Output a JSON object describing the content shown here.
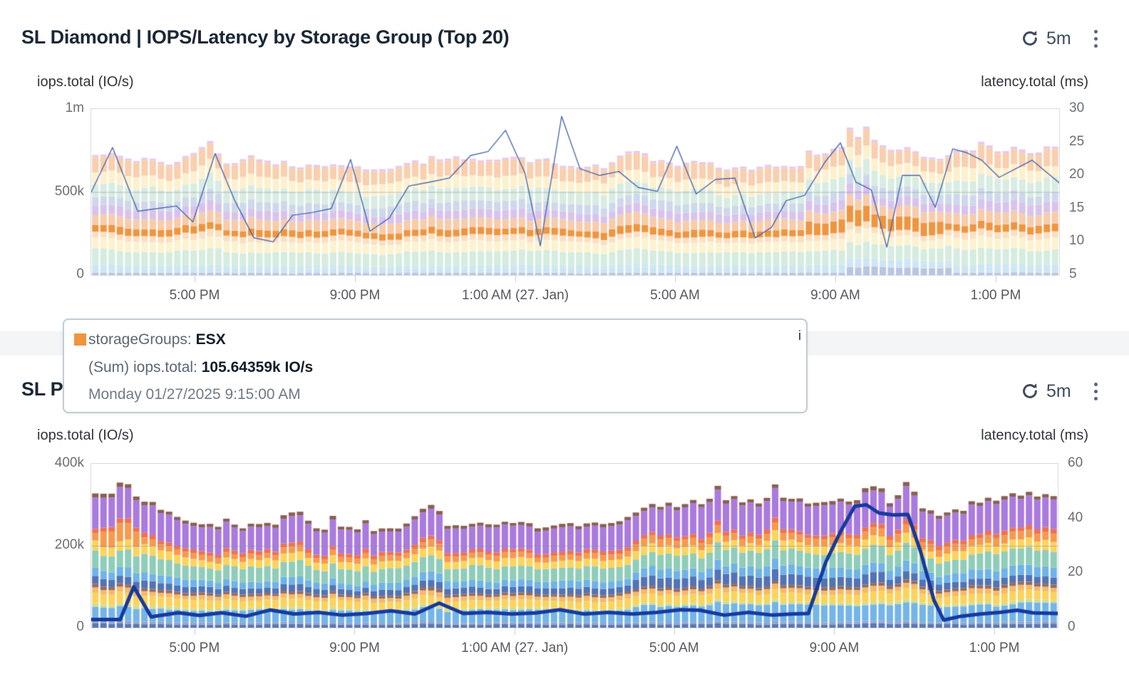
{
  "panels": [
    {
      "title": "SL Diamond | IOPS/Latency by Storage Group (Top 20)",
      "refresh_interval": "5m"
    },
    {
      "title": "SL P",
      "refresh_interval": "5m"
    }
  ],
  "tooltip": {
    "swatch_color": "#f0943e",
    "series_label": "storageGroups:",
    "series_value": "ESX",
    "metric_label": "(Sum) iops.total:",
    "metric_value": "105.64359k IO/s",
    "timestamp": "Monday 01/27/2025 9:15:00 AM",
    "overlay_char": "i"
  },
  "chart_data": [
    {
      "type": "stacked-bar+line",
      "title": "SL Diamond | IOPS/Latency by Storage Group (Top 20)",
      "bars": 118,
      "seed": 42,
      "grid_fracs": [
        0.5
      ],
      "legend": "none",
      "y_left": {
        "label": "iops.total (IO/s)",
        "max_k": 1000,
        "ticks": [
          {
            "t": "1m",
            "f": 0
          },
          {
            "t": "500k",
            "f": 0.5
          },
          {
            "t": "0",
            "f": 1
          }
        ]
      },
      "y_right": {
        "label": "latency.total (ms)",
        "min": 5,
        "max": 30,
        "ticks": [
          {
            "t": "30",
            "f": 0
          },
          {
            "t": "25",
            "f": 0.2
          },
          {
            "t": "20",
            "f": 0.4
          },
          {
            "t": "15",
            "f": 0.6
          },
          {
            "t": "10",
            "f": 0.8
          },
          {
            "t": "5",
            "f": 1
          }
        ]
      },
      "x_axis": {
        "ticks": [
          {
            "t": "5:00 PM",
            "f": 0.1075
          },
          {
            "t": "9:00 PM",
            "f": 0.2732
          },
          {
            "t": "1:00 AM (27. Jan)",
            "f": 0.4389
          },
          {
            "t": "5:00 AM",
            "f": 0.6038
          },
          {
            "t": "9:00 AM",
            "f": 0.7695
          },
          {
            "t": "1:00 PM",
            "f": 0.9352
          }
        ]
      },
      "totals_k": [
        [
          0,
          700
        ],
        [
          0.02,
          730
        ],
        [
          0.05,
          700
        ],
        [
          0.08,
          680
        ],
        [
          0.1,
          700
        ],
        [
          0.115,
          755
        ],
        [
          0.14,
          690
        ],
        [
          0.18,
          675
        ],
        [
          0.22,
          665
        ],
        [
          0.26,
          655
        ],
        [
          0.3,
          650
        ],
        [
          0.33,
          670
        ],
        [
          0.36,
          710
        ],
        [
          0.4,
          705
        ],
        [
          0.43,
          715
        ],
        [
          0.46,
          690
        ],
        [
          0.5,
          665
        ],
        [
          0.53,
          655
        ],
        [
          0.555,
          760
        ],
        [
          0.58,
          690
        ],
        [
          0.62,
          670
        ],
        [
          0.65,
          655
        ],
        [
          0.68,
          645
        ],
        [
          0.71,
          655
        ],
        [
          0.74,
          680
        ],
        [
          0.765,
          775
        ],
        [
          0.79,
          810
        ],
        [
          0.8,
          875
        ],
        [
          0.815,
          800
        ],
        [
          0.835,
          760
        ],
        [
          0.86,
          730
        ],
        [
          0.88,
          720
        ],
        [
          0.9,
          735
        ],
        [
          0.92,
          790
        ],
        [
          0.94,
          745
        ],
        [
          0.96,
          755
        ],
        [
          0.98,
          760
        ],
        [
          1,
          755
        ]
      ],
      "layers": [
        {
          "color": "#b9c6e0",
          "frac": 0.02,
          "boost": [
            [
              0.78,
              0.89,
              3.2
            ]
          ]
        },
        {
          "color": "#cfe4f4",
          "frac": 0.045
        },
        {
          "color": "#cbe6f5",
          "frac": 0.02
        },
        {
          "color": "#d5ecdf",
          "frac": 0.125
        },
        {
          "color": "#fdf2cf",
          "frac": 0.09
        },
        {
          "color": "#fbdfc1",
          "frac": 0.05
        },
        {
          "name": "ESX",
          "color": "#f0953f",
          "frac": 0.06,
          "boost": [
            [
              0.74,
              0.88,
              1.9
            ]
          ]
        },
        {
          "color": "#f8cba9",
          "frac": 0.09
        },
        {
          "color": "#d9c3ec",
          "frac": 0.075
        },
        {
          "color": "#ced8ec",
          "frac": 0.08
        },
        {
          "color": "#d8ece2",
          "frac": 0.115
        },
        {
          "color": "#fdf0cd",
          "frac": 0.1
        },
        {
          "color": "#f9cfae",
          "frac": 0.13
        },
        {
          "color": "#e5c8ef",
          "frac": 0.018
        }
      ],
      "line": {
        "color": "#4a68b0",
        "width": 1.4,
        "points": [
          [
            0,
            17.5
          ],
          [
            0.022,
            24.2
          ],
          [
            0.048,
            14.6
          ],
          [
            0.068,
            15.0
          ],
          [
            0.088,
            15.4
          ],
          [
            0.105,
            13.0
          ],
          [
            0.128,
            23.3
          ],
          [
            0.148,
            16.3
          ],
          [
            0.168,
            10.6
          ],
          [
            0.188,
            10.0
          ],
          [
            0.208,
            14.0
          ],
          [
            0.228,
            14.4
          ],
          [
            0.248,
            15.0
          ],
          [
            0.268,
            22.4
          ],
          [
            0.288,
            11.6
          ],
          [
            0.308,
            13.6
          ],
          [
            0.328,
            18.4
          ],
          [
            0.35,
            19.0
          ],
          [
            0.37,
            19.6
          ],
          [
            0.392,
            23.0
          ],
          [
            0.41,
            23.6
          ],
          [
            0.428,
            26.8
          ],
          [
            0.448,
            20.4
          ],
          [
            0.464,
            9.4
          ],
          [
            0.486,
            28.9
          ],
          [
            0.505,
            21.0
          ],
          [
            0.525,
            20.0
          ],
          [
            0.545,
            20.6
          ],
          [
            0.565,
            18.2
          ],
          [
            0.585,
            17.6
          ],
          [
            0.605,
            24.4
          ],
          [
            0.625,
            17.2
          ],
          [
            0.645,
            19.4
          ],
          [
            0.665,
            19.6
          ],
          [
            0.686,
            10.6
          ],
          [
            0.703,
            12.2
          ],
          [
            0.718,
            16.2
          ],
          [
            0.737,
            17.0
          ],
          [
            0.758,
            22.0
          ],
          [
            0.774,
            24.9
          ],
          [
            0.79,
            19.0
          ],
          [
            0.806,
            17.8
          ],
          [
            0.822,
            9.2
          ],
          [
            0.838,
            20.0
          ],
          [
            0.856,
            20.0
          ],
          [
            0.872,
            15.2
          ],
          [
            0.89,
            24.0
          ],
          [
            0.905,
            23.4
          ],
          [
            0.92,
            22.3
          ],
          [
            0.938,
            19.7
          ],
          [
            0.955,
            21.0
          ],
          [
            0.972,
            22.3
          ],
          [
            1,
            18.9
          ]
        ]
      }
    },
    {
      "type": "stacked-bar+line",
      "title": "SL P",
      "bars": 118,
      "seed": 99,
      "grid_fracs": [
        0.5
      ],
      "legend": "none",
      "y_left": {
        "label": "iops.total (IO/s)",
        "max_k": 400,
        "ticks": [
          {
            "t": "400k",
            "f": 0
          },
          {
            "t": "200k",
            "f": 0.5
          },
          {
            "t": "0",
            "f": 1
          }
        ]
      },
      "y_right": {
        "label": "latency.total (ms)",
        "min": 0,
        "max": 60,
        "ticks": [
          {
            "t": "60",
            "f": 0
          },
          {
            "t": "40",
            "f": 0.3333
          },
          {
            "t": "20",
            "f": 0.6667
          },
          {
            "t": "0",
            "f": 1
          }
        ]
      },
      "x_axis": {
        "ticks": [
          {
            "t": "5:00 PM",
            "f": 0.1075
          },
          {
            "t": "9:00 PM",
            "f": 0.2732
          },
          {
            "t": "1:00 AM (27. Jan)",
            "f": 0.4389
          },
          {
            "t": "5:00 AM",
            "f": 0.6038
          },
          {
            "t": "9:00 AM",
            "f": 0.7695
          },
          {
            "t": "1:00 PM",
            "f": 0.9352
          }
        ]
      },
      "totals_k": [
        [
          0,
          330
        ],
        [
          0.02,
          335
        ],
        [
          0.035,
          358
        ],
        [
          0.05,
          320
        ],
        [
          0.07,
          295
        ],
        [
          0.1,
          258
        ],
        [
          0.13,
          252
        ],
        [
          0.16,
          248
        ],
        [
          0.19,
          252
        ],
        [
          0.21,
          288
        ],
        [
          0.23,
          248
        ],
        [
          0.26,
          242
        ],
        [
          0.29,
          238
        ],
        [
          0.32,
          240
        ],
        [
          0.35,
          308
        ],
        [
          0.37,
          248
        ],
        [
          0.4,
          252
        ],
        [
          0.43,
          256
        ],
        [
          0.46,
          250
        ],
        [
          0.49,
          248
        ],
        [
          0.52,
          252
        ],
        [
          0.55,
          258
        ],
        [
          0.58,
          295
        ],
        [
          0.61,
          305
        ],
        [
          0.64,
          312
        ],
        [
          0.67,
          315
        ],
        [
          0.7,
          308
        ],
        [
          0.72,
          322
        ],
        [
          0.75,
          308
        ],
        [
          0.77,
          305
        ],
        [
          0.8,
          312
        ],
        [
          0.81,
          352
        ],
        [
          0.83,
          300
        ],
        [
          0.845,
          358
        ],
        [
          0.86,
          300
        ],
        [
          0.875,
          278
        ],
        [
          0.9,
          292
        ],
        [
          0.92,
          308
        ],
        [
          0.94,
          315
        ],
        [
          0.96,
          322
        ],
        [
          0.98,
          330
        ],
        [
          1,
          328
        ]
      ],
      "layers": [
        {
          "color": "#5e77b5",
          "frac": 0.03
        },
        {
          "color": "#93a5cc",
          "frac": 0.018
        },
        {
          "color": "#74b5e9",
          "frac": 0.11,
          "boost": [
            [
              0.56,
              1.01,
              1.25
            ]
          ]
        },
        {
          "color": "#d2de8e",
          "frac": 0.022
        },
        {
          "color": "#fbd35c",
          "frac": 0.07
        },
        {
          "color": "#f6b966",
          "frac": 0.038
        },
        {
          "color": "#9b6b5a",
          "frac": 0.024
        },
        {
          "color": "#5273b5",
          "frac": 0.055,
          "boost": [
            [
              0.56,
              0.82,
              1.5
            ]
          ]
        },
        {
          "color": "#6fb3e8",
          "frac": 0.062,
          "boost": [
            [
              0.56,
              1.01,
              1.2
            ]
          ]
        },
        {
          "color": "#90cdb9",
          "frac": 0.128
        },
        {
          "color": "#fcd45c",
          "frac": 0.068
        },
        {
          "color": "#f79a4d",
          "frac": 0.05,
          "boost": [
            [
              0.01,
              0.055,
              2.2
            ],
            [
              0.56,
              1.01,
              1.2
            ]
          ]
        },
        {
          "color": "#f2714d",
          "frac": 0.034
        },
        {
          "color": "#aa7ade",
          "frac": 0.215,
          "boost": [
            [
              0.58,
              1.01,
              1.1
            ]
          ]
        },
        {
          "color": "#8a5f52",
          "frac": 0.028
        }
      ],
      "line": {
        "color": "#17399e",
        "width": 5,
        "points": [
          [
            0,
            3.0
          ],
          [
            0.03,
            3.0
          ],
          [
            0.044,
            15.0
          ],
          [
            0.062,
            4.0
          ],
          [
            0.09,
            5.5
          ],
          [
            0.112,
            4.5
          ],
          [
            0.135,
            5.5
          ],
          [
            0.16,
            4.2
          ],
          [
            0.185,
            6.5
          ],
          [
            0.21,
            5.0
          ],
          [
            0.235,
            5.6
          ],
          [
            0.26,
            4.6
          ],
          [
            0.285,
            5.2
          ],
          [
            0.31,
            6.2
          ],
          [
            0.335,
            5.0
          ],
          [
            0.36,
            9.0
          ],
          [
            0.385,
            5.2
          ],
          [
            0.41,
            5.6
          ],
          [
            0.435,
            5.0
          ],
          [
            0.46,
            5.4
          ],
          [
            0.485,
            6.6
          ],
          [
            0.51,
            5.0
          ],
          [
            0.535,
            5.6
          ],
          [
            0.56,
            5.0
          ],
          [
            0.585,
            5.6
          ],
          [
            0.61,
            6.6
          ],
          [
            0.63,
            6.4
          ],
          [
            0.655,
            4.6
          ],
          [
            0.68,
            5.6
          ],
          [
            0.705,
            4.6
          ],
          [
            0.725,
            5.0
          ],
          [
            0.742,
            5.2
          ],
          [
            0.76,
            24.0
          ],
          [
            0.775,
            35.0
          ],
          [
            0.79,
            44.5
          ],
          [
            0.802,
            45.0
          ],
          [
            0.815,
            42.0
          ],
          [
            0.83,
            41.3
          ],
          [
            0.845,
            41.5
          ],
          [
            0.858,
            28.0
          ],
          [
            0.872,
            10.0
          ],
          [
            0.882,
            2.8
          ],
          [
            0.9,
            4.2
          ],
          [
            0.92,
            5.0
          ],
          [
            0.94,
            5.6
          ],
          [
            0.958,
            6.4
          ],
          [
            0.975,
            5.4
          ],
          [
            1,
            5.2
          ]
        ]
      }
    }
  ]
}
